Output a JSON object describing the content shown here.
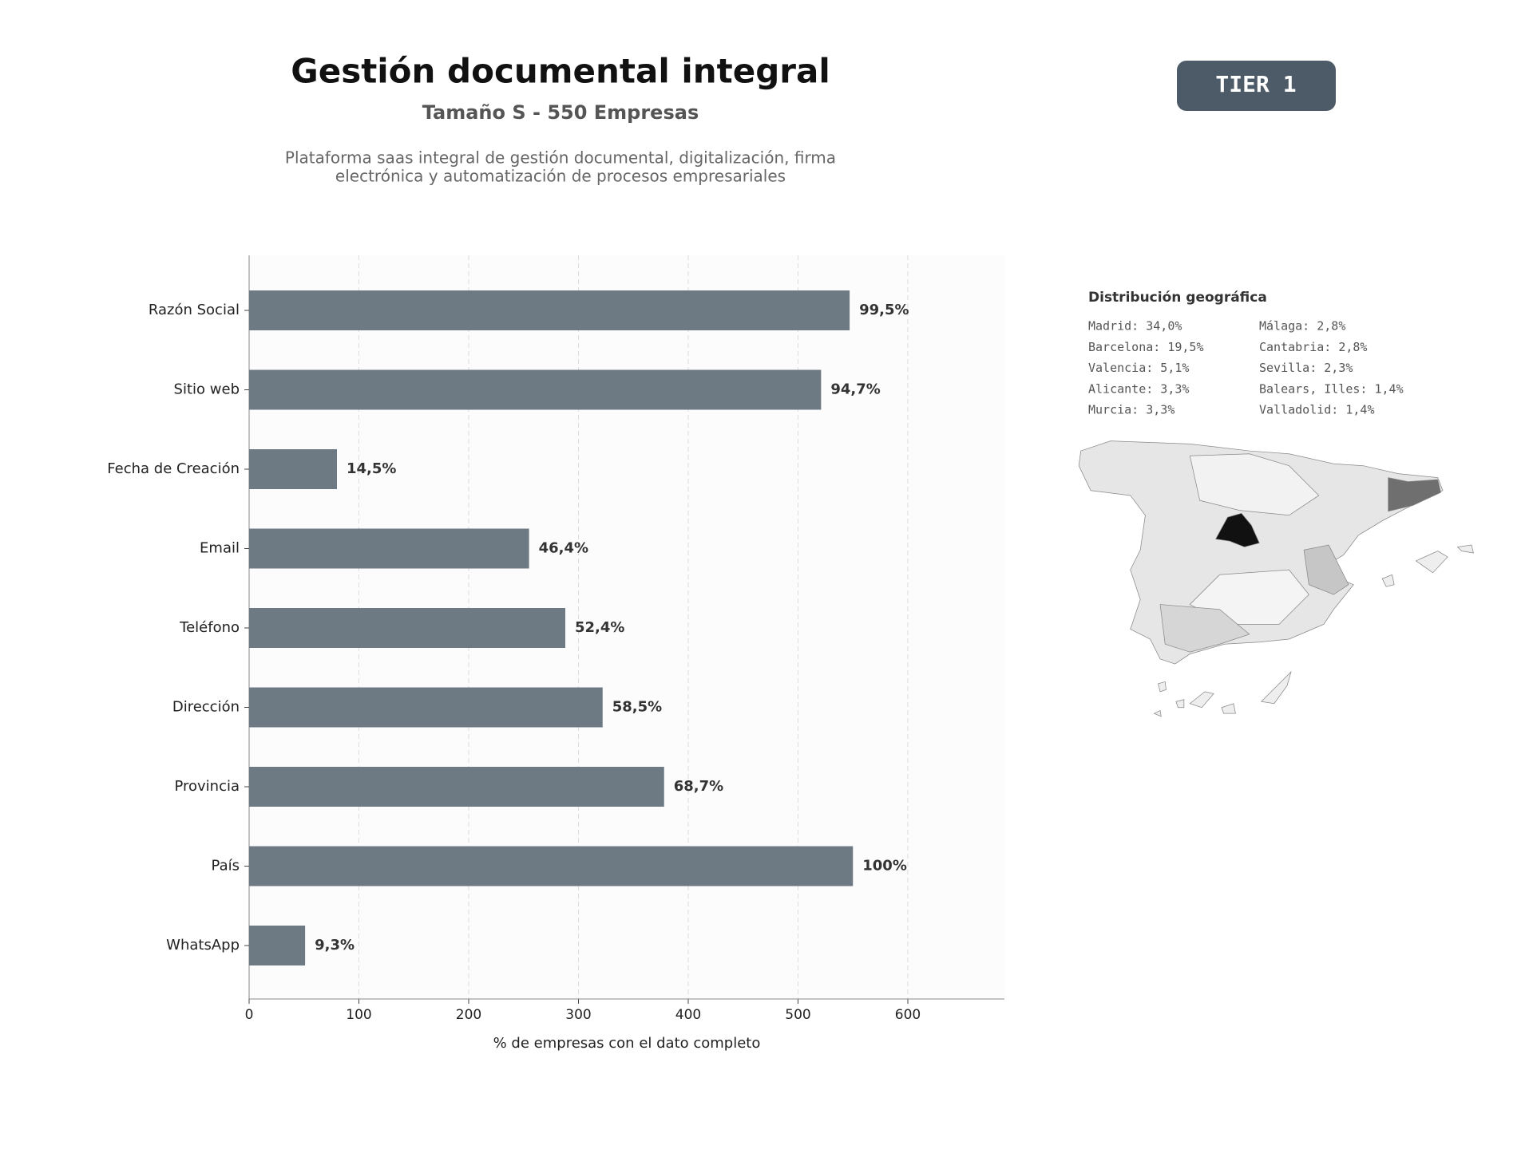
{
  "header": {
    "title": "Gestión documental integral",
    "subtitle": "Tamaño S - 550 Empresas",
    "description": [
      "Plataforma saas integral de gestión documental, digitalización, firma",
      "electrónica y automatización de procesos empresariales"
    ],
    "badge": "TIER 1"
  },
  "chart_data": {
    "type": "bar",
    "orientation": "horizontal",
    "categories": [
      "Razón Social",
      "Sitio web",
      "Fecha de Creación",
      "Email",
      "Teléfono",
      "Dirección",
      "Provincia",
      "País",
      "WhatsApp"
    ],
    "values": [
      547,
      521,
      80,
      255,
      288,
      322,
      378,
      550,
      51
    ],
    "value_labels": [
      "99,5%",
      "94,7%",
      "14,5%",
      "46,4%",
      "52,4%",
      "58,5%",
      "68,7%",
      "100%",
      "9,3%"
    ],
    "color": "#6e7a83",
    "xlabel": "% de empresas con el dato completo",
    "xlim": [
      0,
      688
    ],
    "xticks": [
      0,
      100,
      200,
      300,
      400,
      500,
      600
    ],
    "grid": true
  },
  "geo": {
    "title": "Distribución geográfica",
    "columns": [
      [
        "Madrid: 34,0%",
        "Barcelona: 19,5%",
        "Valencia: 5,1%",
        "Alicante: 3,3%",
        "Murcia: 3,3%"
      ],
      [
        "Málaga: 2,8%",
        "Cantabria: 2,8%",
        "Sevilla: 2,3%",
        "Balears, Illes: 1,4%",
        "Valladolid: 1,4%"
      ]
    ]
  }
}
